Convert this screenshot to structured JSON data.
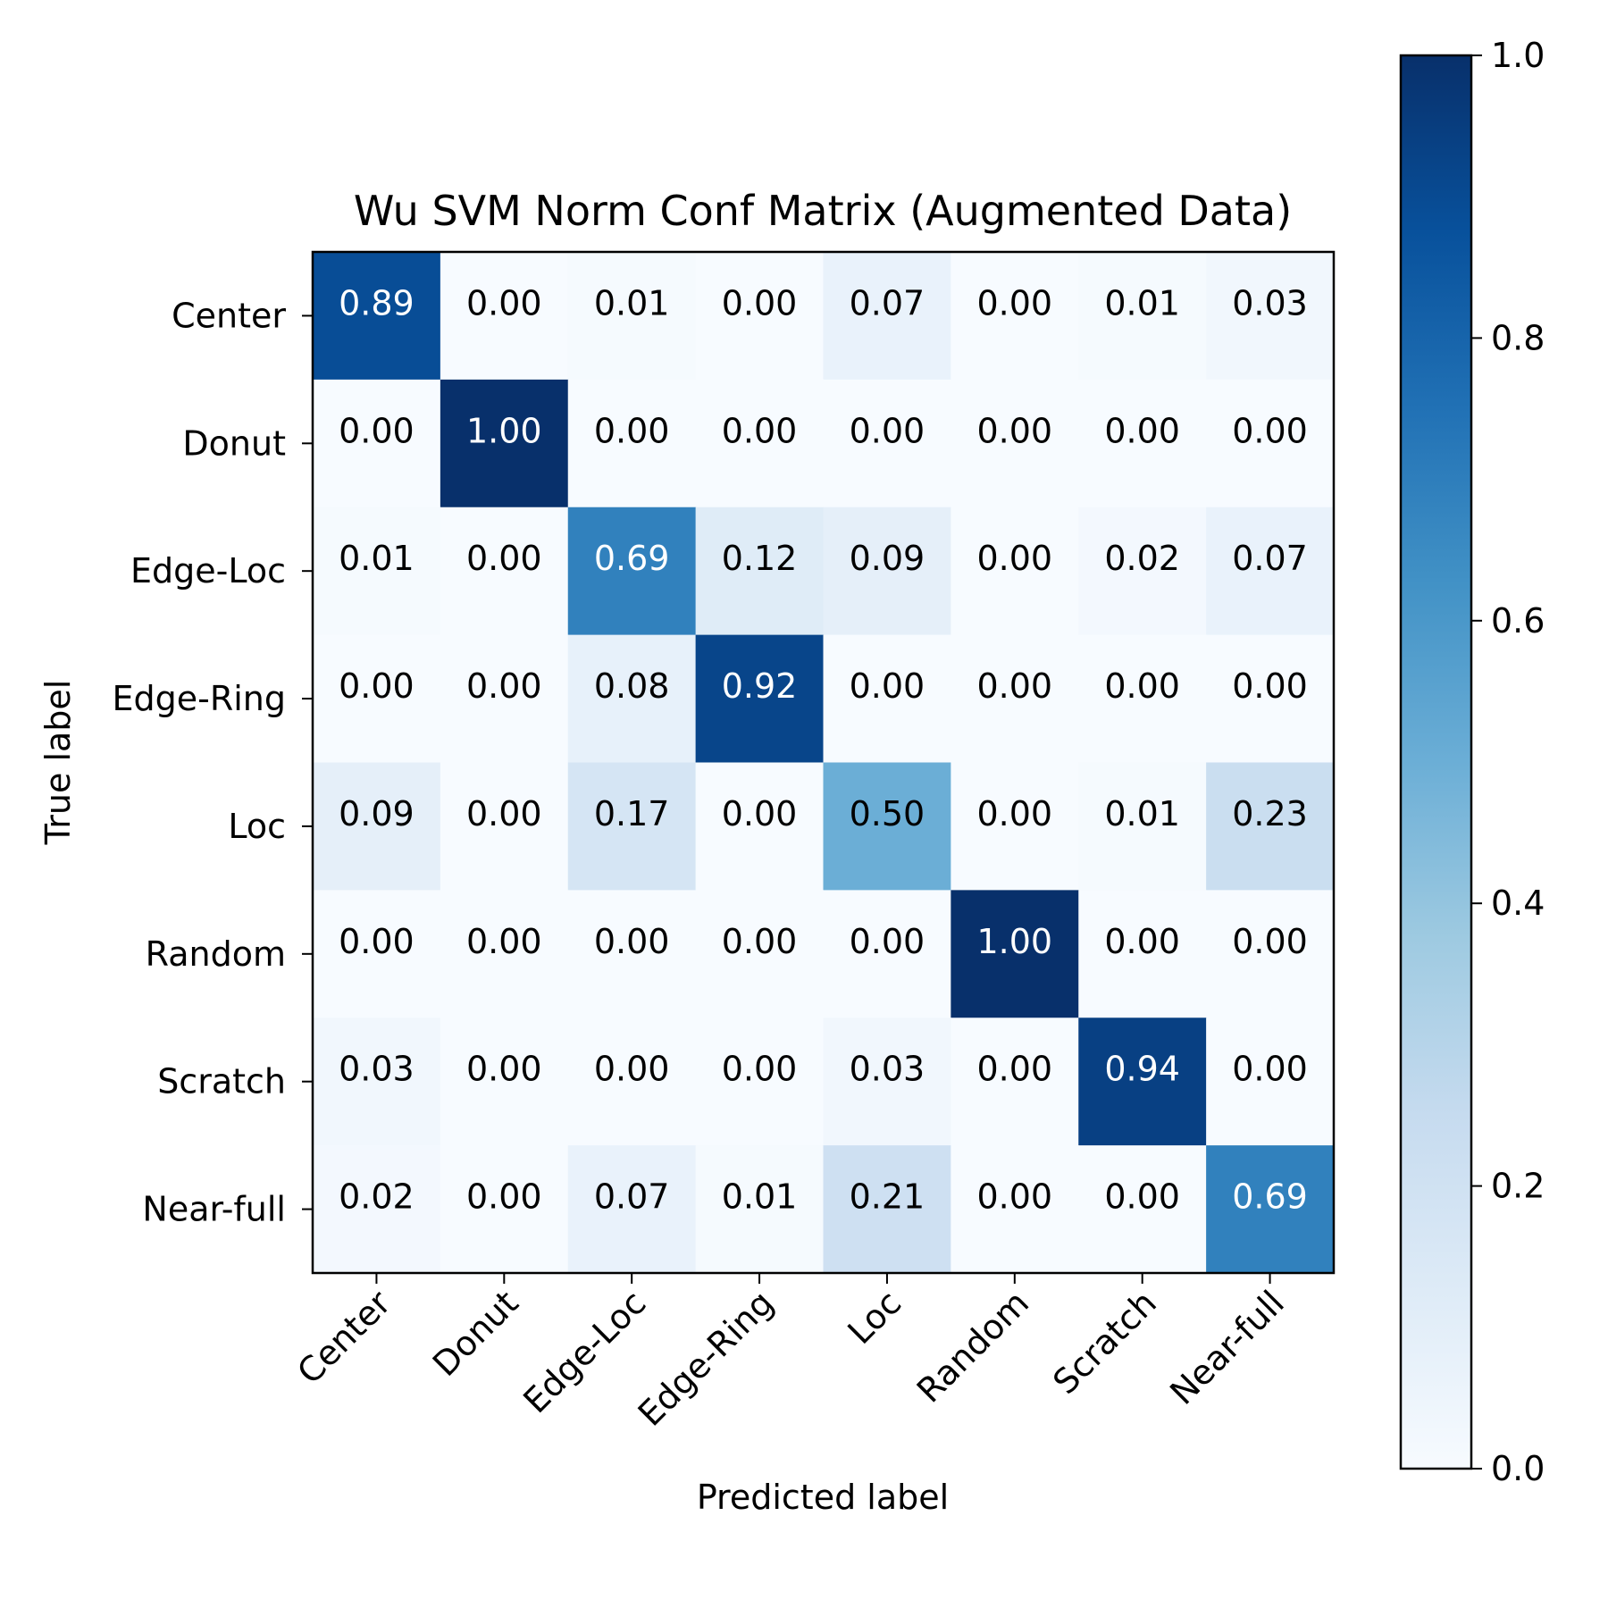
{
  "chart_data": {
    "type": "heatmap",
    "title": "Wu SVM Norm Conf Matrix (Augmented Data)",
    "xlabel": "Predicted label",
    "ylabel": "True label",
    "categories": [
      "Center",
      "Donut",
      "Edge-Loc",
      "Edge-Ring",
      "Loc",
      "Random",
      "Scratch",
      "Near-full"
    ],
    "values": [
      [
        0.89,
        0.0,
        0.01,
        0.0,
        0.07,
        0.0,
        0.01,
        0.03
      ],
      [
        0.0,
        1.0,
        0.0,
        0.0,
        0.0,
        0.0,
        0.0,
        0.0
      ],
      [
        0.01,
        0.0,
        0.69,
        0.12,
        0.09,
        0.0,
        0.02,
        0.07
      ],
      [
        0.0,
        0.0,
        0.08,
        0.92,
        0.0,
        0.0,
        0.0,
        0.0
      ],
      [
        0.09,
        0.0,
        0.17,
        0.0,
        0.5,
        0.0,
        0.01,
        0.23
      ],
      [
        0.0,
        0.0,
        0.0,
        0.0,
        0.0,
        1.0,
        0.0,
        0.0
      ],
      [
        0.03,
        0.0,
        0.0,
        0.0,
        0.03,
        0.0,
        0.94,
        0.0
      ],
      [
        0.02,
        0.0,
        0.07,
        0.01,
        0.21,
        0.0,
        0.0,
        0.69
      ]
    ],
    "colormap": "Blues",
    "colorbar": {
      "range": [
        0.0,
        1.0
      ],
      "ticks": [
        "0.0",
        "0.2",
        "0.4",
        "0.6",
        "0.8",
        "1.0"
      ]
    },
    "text_color_dark": "#000000",
    "text_color_light": "#ffffff",
    "grid": false
  }
}
